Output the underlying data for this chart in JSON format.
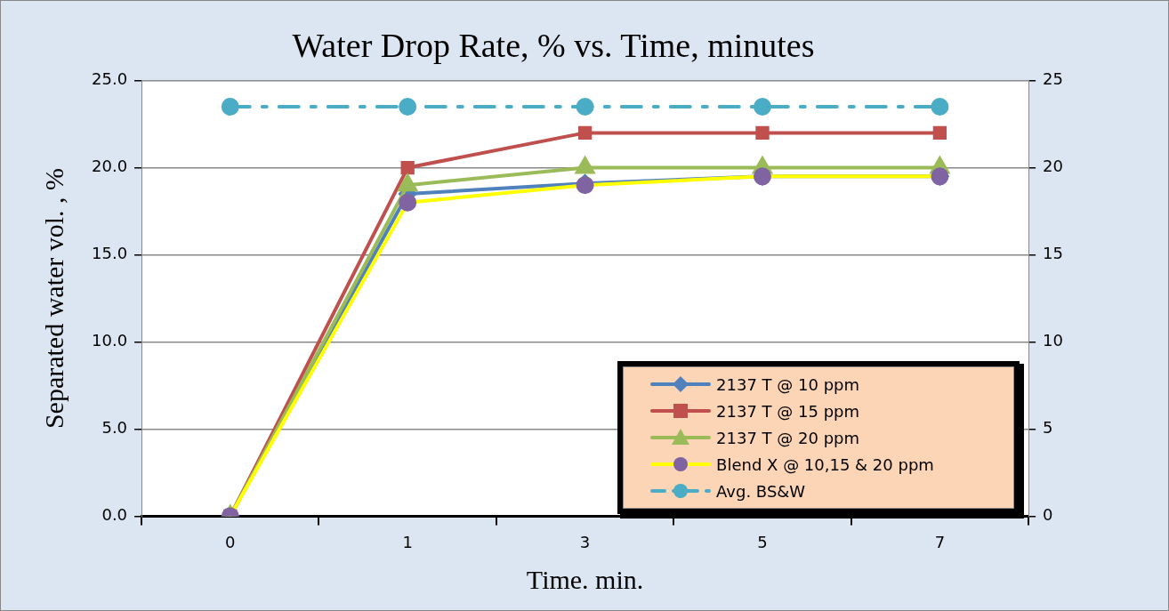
{
  "chart_data": {
    "type": "line",
    "title": "Water Drop Rate, % vs. Time, minutes",
    "xlabel": "Time. min.",
    "ylabel": "Separated water vol. , %",
    "categories": [
      "0",
      "1",
      "3",
      "5",
      "7"
    ],
    "series": [
      {
        "name": "2137 T @ 10 ppm",
        "color": "#4f81bd",
        "marker": "diamond",
        "values": [
          0,
          18.5,
          19.1,
          19.5,
          19.5
        ]
      },
      {
        "name": "2137 T @ 15 ppm",
        "color": "#c0504d",
        "marker": "square",
        "values": [
          0,
          20,
          22,
          22,
          22
        ]
      },
      {
        "name": "2137 T @ 20 ppm",
        "color": "#9bbb59",
        "marker": "triangle",
        "values": [
          0,
          19,
          20,
          20,
          20
        ]
      },
      {
        "name": "Blend X @ 10,15 & 20 ppm",
        "color": "#ffff00",
        "colors": [
          "#8064a2",
          "#8064a2",
          "#8064a2",
          "#8064a2",
          "#8064a2"
        ],
        "marker": "circle",
        "values": [
          0,
          18,
          19,
          19.5,
          19.5
        ]
      },
      {
        "name": "Avg. BS&W",
        "color": "#4bacc6",
        "marker": "circle",
        "line_style": "dashed",
        "values": [
          23.5,
          23.5,
          23.5,
          23.5,
          23.5
        ]
      }
    ],
    "ylim": [
      0,
      25
    ],
    "yticks": [
      {
        "value": 0,
        "label": "0.0"
      },
      {
        "value": 5,
        "label": "5.0"
      },
      {
        "value": 10,
        "label": "10.0"
      },
      {
        "value": 15,
        "label": "15.0"
      },
      {
        "value": 20,
        "label": "20.0"
      },
      {
        "value": 25,
        "label": "25.0"
      }
    ],
    "y2lim": [
      0,
      25
    ],
    "y2ticks": [
      0,
      5,
      10,
      15,
      20,
      25
    ],
    "grid": "y",
    "legend": "bottom right"
  }
}
